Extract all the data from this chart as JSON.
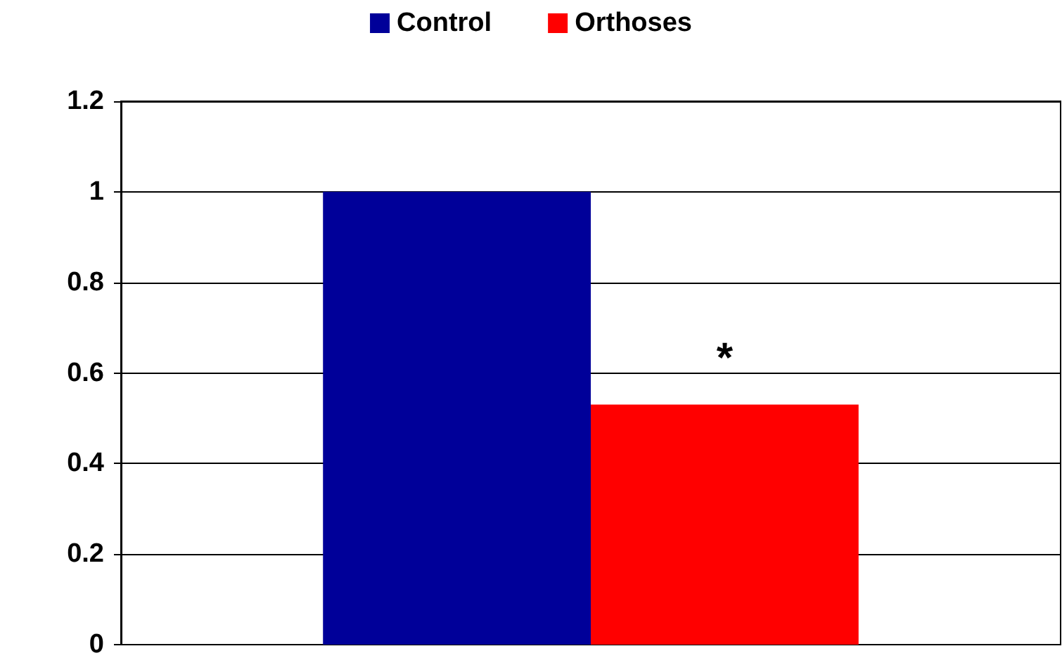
{
  "chart_data": {
    "type": "bar",
    "categories": [
      null
    ],
    "series": [
      {
        "name": "Control",
        "color": "#000099",
        "values": [
          1
        ]
      },
      {
        "name": "Orthoses",
        "color": "#ff0000",
        "values": [
          0.53
        ]
      }
    ],
    "ylim": [
      0,
      1.2
    ],
    "yticks": [
      0,
      0.2,
      0.4,
      0.6,
      0.8,
      1,
      1.2
    ],
    "grid": "y",
    "legend": "top",
    "annotations": [
      "*"
    ]
  }
}
